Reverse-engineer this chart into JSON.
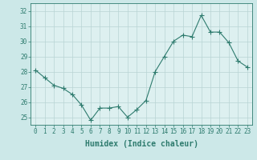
{
  "xlabel": "Humidex (Indice chaleur)",
  "ylabel": "",
  "x_values": [
    0,
    1,
    2,
    3,
    4,
    5,
    6,
    7,
    8,
    9,
    10,
    11,
    12,
    13,
    14,
    15,
    16,
    17,
    18,
    19,
    20,
    21,
    22,
    23
  ],
  "y_values": [
    28.1,
    27.6,
    27.1,
    26.9,
    26.5,
    25.8,
    24.8,
    25.6,
    25.6,
    25.7,
    25.0,
    25.5,
    26.1,
    28.0,
    29.0,
    30.0,
    30.4,
    30.3,
    31.7,
    30.6,
    30.6,
    29.9,
    28.7,
    28.3
  ],
  "line_color": "#2e7b6e",
  "marker": "+",
  "marker_size": 4,
  "background_color": "#cce8e8",
  "plot_bg_color": "#ddf0f0",
  "grid_color": "#b8d4d4",
  "ylim": [
    24.5,
    32.5
  ],
  "xlim": [
    -0.5,
    23.5
  ],
  "yticks": [
    25,
    26,
    27,
    28,
    29,
    30,
    31,
    32
  ],
  "xticks": [
    0,
    1,
    2,
    3,
    4,
    5,
    6,
    7,
    8,
    9,
    10,
    11,
    12,
    13,
    14,
    15,
    16,
    17,
    18,
    19,
    20,
    21,
    22,
    23
  ],
  "tick_fontsize": 5.5,
  "xlabel_fontsize": 7,
  "spine_color": "#2e7b6e",
  "tick_color": "#2e7b6e"
}
